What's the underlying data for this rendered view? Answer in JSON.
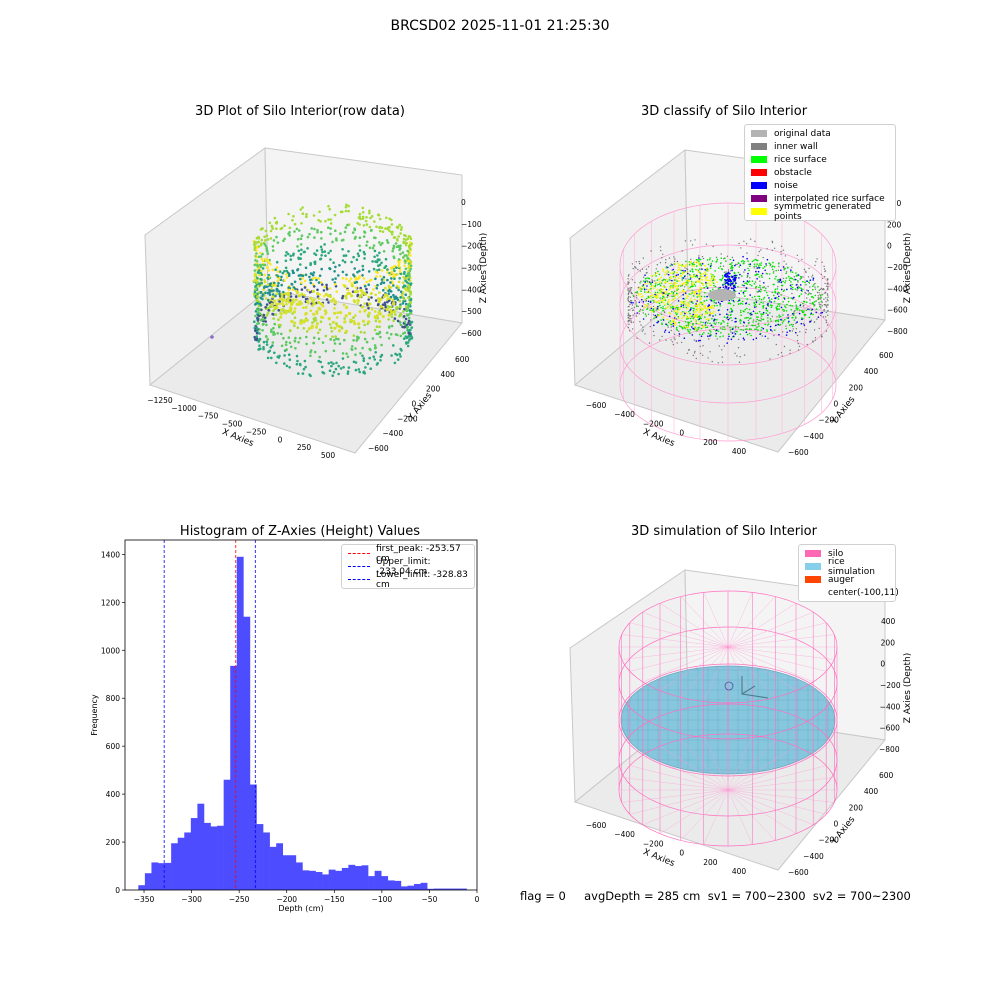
{
  "suptitle": "BRCSD02 2025-11-01 21:25:30",
  "footer": "flag = 0     avgDepth = 285 cm  sv1 = 700~2300  sv2 = 700~2300",
  "chart_data": [
    {
      "type": "scatter3d",
      "title": "3D Plot of Silo Interior(row data)",
      "xlabel": "X Axies",
      "ylabel": "Y Axies",
      "zlabel": "Z Axies (Depth)",
      "x_ticks": [
        "−1250",
        "−1000",
        "−750",
        "−500",
        "−250",
        "0",
        "250",
        "500"
      ],
      "y_ticks": [
        "−600",
        "−400",
        "−200",
        "0",
        "200",
        "400",
        "600"
      ],
      "z_ticks": [
        "−600",
        "−500",
        "−400",
        "−300",
        "−200",
        "−100",
        "0"
      ],
      "colormap": "viridis"
    },
    {
      "type": "scatter3d",
      "title": "3D classify of Silo Interior",
      "xlabel": "X Axies",
      "ylabel": "Y Axies",
      "zlabel": "Z Axies (Depth)",
      "x_ticks": [
        "−600",
        "−400",
        "−200",
        "0",
        "200",
        "400"
      ],
      "y_ticks": [
        "−600",
        "−400",
        "−200",
        "0",
        "200",
        "400",
        "600"
      ],
      "z_ticks": [
        "−800",
        "−600",
        "−400",
        "−200",
        "0",
        "200",
        "400"
      ],
      "legend": [
        {
          "label": "original data",
          "color": "#b3b3b3"
        },
        {
          "label": "inner wall",
          "color": "#808080"
        },
        {
          "label": "rice surface",
          "color": "#00ff00"
        },
        {
          "label": "obstacle",
          "color": "#ff0000"
        },
        {
          "label": "noise",
          "color": "#0000ff"
        },
        {
          "label": "interpolated rice surface",
          "color": "#800080"
        },
        {
          "label": "symmetric generated points",
          "color": "#ffff00"
        }
      ]
    },
    {
      "type": "bar",
      "title": "Histogram of Z-Axies (Height) Values",
      "xlabel": "Depth (cm)",
      "ylabel": "Frequency",
      "xlim": [
        -370,
        0
      ],
      "ylim": [
        0,
        1460
      ],
      "x_ticks": [
        -350,
        -300,
        -250,
        -200,
        -150,
        -100,
        -50,
        0
      ],
      "y_ticks": [
        0,
        200,
        400,
        600,
        800,
        1000,
        1200,
        1400
      ],
      "bar_color": "#4d4dff",
      "bin_start": -356,
      "bin_width": 6.9,
      "values": [
        20,
        70,
        115,
        112,
        113,
        195,
        218,
        240,
        300,
        360,
        280,
        265,
        268,
        460,
        935,
        1390,
        1140,
        440,
        275,
        240,
        180,
        195,
        145,
        145,
        115,
        82,
        80,
        75,
        65,
        85,
        80,
        92,
        105,
        100,
        103,
        58,
        80,
        58,
        40,
        38,
        15,
        18,
        25,
        30,
        5,
        6,
        6,
        6,
        6,
        6
      ],
      "vlines": [
        {
          "label": "first_peak: -253.57 cm",
          "x": -253.57,
          "color": "#ff0000"
        },
        {
          "label": "Upper_limit: -233.04 cm",
          "x": -233.04,
          "color": "#0000ff"
        },
        {
          "label": "Lower_limit: -328.83 cm",
          "x": -328.83,
          "color": "#0000ff"
        }
      ]
    },
    {
      "type": "surface3d",
      "title": "3D simulation of Silo Interior",
      "xlabel": "X Axies",
      "ylabel": "Y Axies",
      "zlabel": "Z Axies (Depth)",
      "x_ticks": [
        "−600",
        "−400",
        "−200",
        "0",
        "200",
        "400"
      ],
      "y_ticks": [
        "−600",
        "−400",
        "−200",
        "0",
        "200",
        "400",
        "600"
      ],
      "z_ticks": [
        "−800",
        "−600",
        "−400",
        "−200",
        "0",
        "200",
        "400"
      ],
      "legend": [
        {
          "label": "silo",
          "color": "#ff69b4"
        },
        {
          "label": "rice simulation",
          "color": "#87ceeb"
        },
        {
          "label": "auger",
          "color": "#ff4500"
        },
        {
          "label": "center(-100,11)",
          "color": ""
        }
      ]
    }
  ]
}
